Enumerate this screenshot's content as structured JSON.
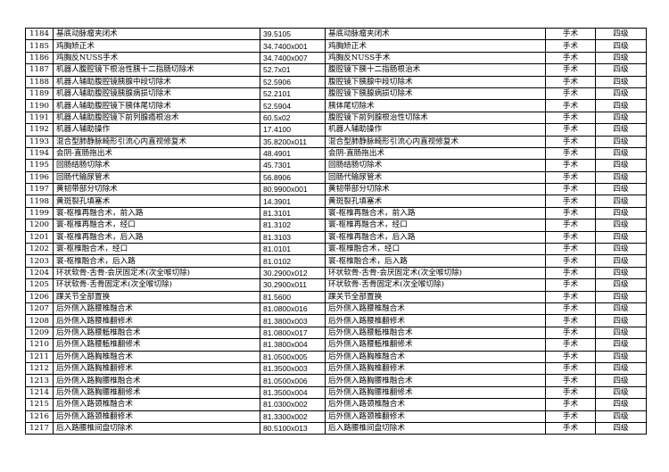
{
  "table": {
    "rows": [
      [
        "1184",
        "基底动脉瘤夹闭术",
        "39.5105",
        "基底动脉瘤夹闭术",
        "手术",
        "四级"
      ],
      [
        "1185",
        "鸡胸矫正术",
        "34.7400x001",
        "鸡胸矫正术",
        "手术",
        "四级"
      ],
      [
        "1186",
        "鸡胸反NUSS手术",
        "34.7400x007",
        "鸡胸反NUSS手术",
        "手术",
        "四级"
      ],
      [
        "1187",
        "机器人腹腔镜下根治性胰十二指肠切除术",
        "52.7x01",
        "腹腔镜下胰十二指肠根治术",
        "手术",
        "四级"
      ],
      [
        "1188",
        "机器人辅助腹腔镜胰腺中段切除术",
        "52.5906",
        "腹腔镜下胰腺中段切除术",
        "手术",
        "四级"
      ],
      [
        "1189",
        "机器人辅助腹腔镜胰腺病损切除术",
        "52.2101",
        "腹腔镜下胰腺病损切除术",
        "手术",
        "四级"
      ],
      [
        "1190",
        "机器人辅助腹腔镜下胰体尾切除术",
        "52.5904",
        "胰体尾切除术",
        "手术",
        "四级"
      ],
      [
        "1191",
        "机器人辅助腹腔镜下前列腺癌根治术",
        "60.5x02",
        "腹腔镜下前列腺根治性切除术",
        "手术",
        "四级"
      ],
      [
        "1192",
        "机器人辅助操作",
        "17.4100",
        "机器人辅助操作",
        "手术",
        "四级"
      ],
      [
        "1193",
        "混合型肺静脉畸形引流心内直视修复术",
        "35.8200x011",
        "混合型肺静脉畸形引流心内直视修复术",
        "手术",
        "四级"
      ],
      [
        "1194",
        "会阴-直肠拖出术",
        "48.4901",
        "会阴-直肠拖出术",
        "手术",
        "四级"
      ],
      [
        "1195",
        "回肠结肠切除术",
        "45.7301",
        "回肠结肠切除术",
        "手术",
        "四级"
      ],
      [
        "1196",
        "回肠代输尿管术",
        "56.8906",
        "回肠代输尿管术",
        "手术",
        "四级"
      ],
      [
        "1197",
        "黄韧带部分切除术",
        "80.9900x001",
        "黄韧带部分切除术",
        "手术",
        "四级"
      ],
      [
        "1198",
        "黄斑裂孔填塞术",
        "14.3901",
        "黄斑裂孔填塞术",
        "手术",
        "四级"
      ],
      [
        "1199",
        "寰-枢椎再融合术，前入路",
        "81.3101",
        "寰-枢椎再融合术，前入路",
        "手术",
        "四级"
      ],
      [
        "1200",
        "寰-枢椎再融合术，经口",
        "81.3102",
        "寰-枢椎再融合术，经口",
        "手术",
        "四级"
      ],
      [
        "1201",
        "寰-枢椎再融合术，后入路",
        "81.3103",
        "寰-枢椎再融合术，后入路",
        "手术",
        "四级"
      ],
      [
        "1202",
        "寰-枢椎融合术，经口",
        "81.0101",
        "寰-枢椎融合术，经口",
        "手术",
        "四级"
      ],
      [
        "1203",
        "寰-枢椎融合术，后入路",
        "81.0102",
        "寰-枢椎融合术，后入路",
        "手术",
        "四级"
      ],
      [
        "1204",
        "环状软骨-舌骨-会厌固定术(次全喉切除)",
        "30.2900x012",
        "环状软骨-舌骨-会厌固定术(次全喉切除)",
        "手术",
        "四级"
      ],
      [
        "1205",
        "环状软骨-舌骨固定术(次全喉切除)",
        "30.2900x011",
        "环状软骨-舌骨固定术(次全喉切除)",
        "手术",
        "四级"
      ],
      [
        "1206",
        "踝关节全部置换",
        "81.5600",
        "踝关节全部置换",
        "手术",
        "四级"
      ],
      [
        "1207",
        "后外侧入路腰椎融合术",
        "81.0800x016",
        "后外侧入路腰椎融合术",
        "手术",
        "四级"
      ],
      [
        "1208",
        "后外侧入路腰椎翻修术",
        "81.3800x003",
        "后外侧入路腰椎翻修术",
        "手术",
        "四级"
      ],
      [
        "1209",
        "后外侧入路腰骶椎融合术",
        "81.0800x017",
        "后外侧入路腰骶椎融合术",
        "手术",
        "四级"
      ],
      [
        "1210",
        "后外侧入路腰骶椎翻修术",
        "81.3800x004",
        "后外侧入路腰骶椎翻修术",
        "手术",
        "四级"
      ],
      [
        "1211",
        "后外侧入路胸椎融合术",
        "81.0500x005",
        "后外侧入路胸椎融合术",
        "手术",
        "四级"
      ],
      [
        "1212",
        "后外侧入路胸椎翻修术",
        "81.3500x003",
        "后外侧入路胸椎翻修术",
        "手术",
        "四级"
      ],
      [
        "1213",
        "后外侧入路胸腰椎融合术",
        "81.0500x006",
        "后外侧入路胸腰椎融合术",
        "手术",
        "四级"
      ],
      [
        "1214",
        "后外侧入路胸腰椎翻修术",
        "81.3500x004",
        "后外侧入路胸腰椎翻修术",
        "手术",
        "四级"
      ],
      [
        "1215",
        "后外侧入路颈椎融合术",
        "81.0300x002",
        "后外侧入路颈椎融合术",
        "手术",
        "四级"
      ],
      [
        "1216",
        "后外侧入路颈椎翻修术",
        "81.3300x002",
        "后外侧入路颈椎翻修术",
        "手术",
        "四级"
      ],
      [
        "1217",
        "后入路腰椎间盘切除术",
        "80.5100x013",
        "后入路腰椎间盘切除术",
        "手术",
        "四级"
      ]
    ]
  }
}
